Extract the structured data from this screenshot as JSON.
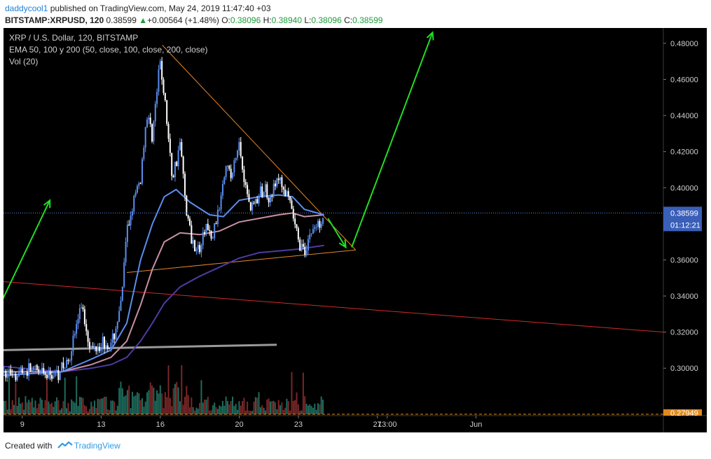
{
  "header": {
    "author": "daddycool1",
    "published": "published on TradingView.com, May 24, 2019 11:47:40 +03",
    "symbol": "BITSTAMP:XRPUSD, 120",
    "last": "0.38599",
    "change_arrow": "▲",
    "change": "+0.00564 (+1.48%)",
    "o_label": "O:",
    "o": "0.38096",
    "h_label": "H:",
    "h": "0.38940",
    "l_label": "L:",
    "l": "0.38096",
    "c_label": "C:",
    "c": "0.38599"
  },
  "legend": {
    "line1": "XRP / U.S. Dollar, 120, BITSTAMP",
    "line2": "EMA 50, 100 y 200 (50, close, 100, close, 200, close)",
    "line3": "Vol (20)"
  },
  "price_tag": {
    "price": "0.38599",
    "countdown": "01:12:21",
    "bottom": "0.27949"
  },
  "footer": {
    "created": "Created with",
    "brand": "TradingView"
  },
  "colors": {
    "background": "#000000",
    "up": "#5b8def",
    "down": "#ffffff",
    "ema50": "#5b8def",
    "ema100": "#c98fa6",
    "ema200": "#4f3aa3",
    "trend_orange": "#e5872c",
    "trend_red": "#d12a2a",
    "trend_gray": "#9a9a9a",
    "arrow": "#22dd22",
    "vol_up": "#1f6b5c",
    "vol_down": "#7a2727"
  },
  "chart_data": {
    "type": "candlestick",
    "title": "XRP / U.S. Dollar, 120, BITSTAMP",
    "ylim": [
      0.2745,
      0.4885
    ],
    "y_ticks": [
      "0.48000",
      "0.46000",
      "0.44000",
      "0.42000",
      "0.40000",
      "0.38000",
      "0.36000",
      "0.34000",
      "0.32000",
      "0.30000"
    ],
    "x_ticks": [
      "9",
      "13",
      "16",
      "20",
      "23",
      "27",
      "13:00",
      "Jun"
    ],
    "x_tick_days": [
      9,
      13,
      16,
      20,
      23,
      27,
      27.5,
      32
    ],
    "xlim_days": [
      8.05,
      41.5
    ],
    "closes": [
      {
        "day": 8.0,
        "close": 0.297
      },
      {
        "day": 9.5,
        "close": 0.299
      },
      {
        "day": 10.3,
        "close": 0.295
      },
      {
        "day": 11.2,
        "close": 0.301
      },
      {
        "day": 11.5,
        "close": 0.312
      },
      {
        "day": 12.0,
        "close": 0.335
      },
      {
        "day": 12.5,
        "close": 0.31
      },
      {
        "day": 13.0,
        "close": 0.315
      },
      {
        "day": 13.5,
        "close": 0.312
      },
      {
        "day": 13.8,
        "close": 0.325
      },
      {
        "day": 14.0,
        "close": 0.335
      },
      {
        "day": 14.3,
        "close": 0.375
      },
      {
        "day": 14.6,
        "close": 0.39
      },
      {
        "day": 15.0,
        "close": 0.405
      },
      {
        "day": 15.3,
        "close": 0.44
      },
      {
        "day": 15.6,
        "close": 0.43
      },
      {
        "day": 16.0,
        "close": 0.47
      },
      {
        "day": 16.3,
        "close": 0.44
      },
      {
        "day": 16.6,
        "close": 0.405
      },
      {
        "day": 17.0,
        "close": 0.425
      },
      {
        "day": 17.3,
        "close": 0.39
      },
      {
        "day": 17.6,
        "close": 0.37
      },
      {
        "day": 18.0,
        "close": 0.365
      },
      {
        "day": 18.3,
        "close": 0.38
      },
      {
        "day": 18.6,
        "close": 0.37
      },
      {
        "day": 19.0,
        "close": 0.39
      },
      {
        "day": 19.3,
        "close": 0.415
      },
      {
        "day": 19.6,
        "close": 0.405
      },
      {
        "day": 20.0,
        "close": 0.425
      },
      {
        "day": 20.3,
        "close": 0.4
      },
      {
        "day": 20.6,
        "close": 0.39
      },
      {
        "day": 21.0,
        "close": 0.395
      },
      {
        "day": 21.3,
        "close": 0.4
      },
      {
        "day": 21.6,
        "close": 0.395
      },
      {
        "day": 22.0,
        "close": 0.405
      },
      {
        "day": 22.3,
        "close": 0.398
      },
      {
        "day": 22.6,
        "close": 0.39
      },
      {
        "day": 23.0,
        "close": 0.37
      },
      {
        "day": 23.3,
        "close": 0.365
      },
      {
        "day": 23.6,
        "close": 0.375
      },
      {
        "day": 24.0,
        "close": 0.38
      },
      {
        "day": 24.3,
        "close": 0.386
      }
    ],
    "ema50": [
      {
        "day": 8.0,
        "value": 0.296
      },
      {
        "day": 11.0,
        "value": 0.298
      },
      {
        "day": 12.5,
        "value": 0.305
      },
      {
        "day": 13.5,
        "value": 0.31
      },
      {
        "day": 14.3,
        "value": 0.325
      },
      {
        "day": 15.0,
        "value": 0.36
      },
      {
        "day": 15.6,
        "value": 0.38
      },
      {
        "day": 16.2,
        "value": 0.395
      },
      {
        "day": 16.8,
        "value": 0.399
      },
      {
        "day": 17.5,
        "value": 0.392
      },
      {
        "day": 18.5,
        "value": 0.385
      },
      {
        "day": 19.2,
        "value": 0.384
      },
      {
        "day": 20.0,
        "value": 0.393
      },
      {
        "day": 21.0,
        "value": 0.395
      },
      {
        "day": 22.0,
        "value": 0.396
      },
      {
        "day": 22.7,
        "value": 0.395
      },
      {
        "day": 23.3,
        "value": 0.388
      },
      {
        "day": 24.3,
        "value": 0.385
      }
    ],
    "ema100": [
      {
        "day": 8.0,
        "value": 0.298
      },
      {
        "day": 11.0,
        "value": 0.298
      },
      {
        "day": 12.5,
        "value": 0.302
      },
      {
        "day": 13.5,
        "value": 0.306
      },
      {
        "day": 14.3,
        "value": 0.315
      },
      {
        "day": 15.0,
        "value": 0.335
      },
      {
        "day": 15.6,
        "value": 0.355
      },
      {
        "day": 16.2,
        "value": 0.37
      },
      {
        "day": 17.0,
        "value": 0.375
      },
      {
        "day": 18.0,
        "value": 0.374
      },
      {
        "day": 19.0,
        "value": 0.376
      },
      {
        "day": 20.0,
        "value": 0.381
      },
      {
        "day": 21.0,
        "value": 0.383
      },
      {
        "day": 22.0,
        "value": 0.385
      },
      {
        "day": 22.7,
        "value": 0.386
      },
      {
        "day": 23.3,
        "value": 0.384
      },
      {
        "day": 24.3,
        "value": 0.385
      }
    ],
    "ema200": [
      {
        "day": 8.0,
        "value": 0.301
      },
      {
        "day": 11.0,
        "value": 0.298
      },
      {
        "day": 12.5,
        "value": 0.3
      },
      {
        "day": 13.5,
        "value": 0.302
      },
      {
        "day": 14.3,
        "value": 0.306
      },
      {
        "day": 15.0,
        "value": 0.315
      },
      {
        "day": 15.6,
        "value": 0.325
      },
      {
        "day": 16.2,
        "value": 0.336
      },
      {
        "day": 17.0,
        "value": 0.345
      },
      {
        "day": 18.0,
        "value": 0.351
      },
      {
        "day": 19.0,
        "value": 0.356
      },
      {
        "day": 20.0,
        "value": 0.361
      },
      {
        "day": 21.0,
        "value": 0.364
      },
      {
        "day": 22.0,
        "value": 0.365
      },
      {
        "day": 23.0,
        "value": 0.366
      },
      {
        "day": 24.3,
        "value": 0.368
      }
    ],
    "drawings": {
      "orange_upper": [
        {
          "day": 16.1,
          "price": 0.479
        },
        {
          "day": 25.9,
          "price": 0.3655
        }
      ],
      "orange_lower": [
        {
          "day": 14.3,
          "price": 0.353
        },
        {
          "day": 25.9,
          "price": 0.3655
        }
      ],
      "red_trend": [
        {
          "day": 8.0,
          "price": 0.348
        },
        {
          "day": 41.5,
          "price": 0.32
        }
      ],
      "gray_line": [
        {
          "day": 8.0,
          "price": 0.31
        },
        {
          "day": 21.9,
          "price": 0.313
        }
      ],
      "arrow_left_up": [
        {
          "day": 8.0,
          "price": 0.338
        },
        {
          "day": 10.4,
          "price": 0.393
        }
      ],
      "arrow_down": [
        {
          "day": 24.5,
          "price": 0.383
        },
        {
          "day": 25.4,
          "price": 0.367
        }
      ],
      "arrow_up": [
        {
          "day": 25.7,
          "price": 0.367
        },
        {
          "day": 29.8,
          "price": 0.486
        }
      ]
    },
    "volume_max": 100
  }
}
